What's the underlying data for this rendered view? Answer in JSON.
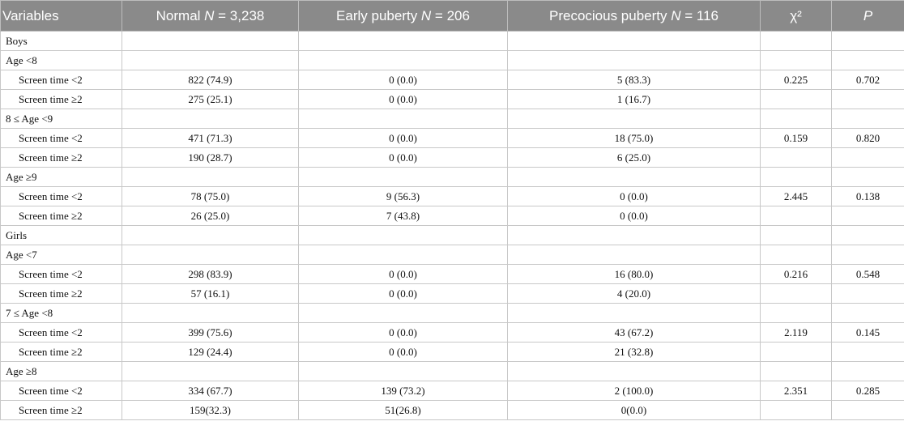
{
  "table": {
    "headers": [
      {
        "pre": "Variables",
        "n": "",
        "num": ""
      },
      {
        "pre": "Normal ",
        "n": "N",
        "num": " = 3,238"
      },
      {
        "pre": "Early puberty ",
        "n": "N",
        "num": " = 206"
      },
      {
        "pre": "Precocious puberty ",
        "n": "N",
        "num": " = 116"
      },
      {
        "pre": "χ²",
        "n": "",
        "num": ""
      },
      {
        "pre": "",
        "n": "P",
        "num": ""
      }
    ],
    "rows": [
      {
        "type": "group",
        "label": "Boys"
      },
      {
        "type": "group",
        "label": "Age <8"
      },
      {
        "type": "data",
        "label": "Screen time <2",
        "normal": "822 (74.9)",
        "early": "0 (0.0)",
        "precocious": "5 (83.3)",
        "chi2": "0.225",
        "p": "0.702"
      },
      {
        "type": "data",
        "label": "Screen time ≥2",
        "normal": "275 (25.1)",
        "early": "0 (0.0)",
        "precocious": "1 (16.7)",
        "chi2": "",
        "p": ""
      },
      {
        "type": "group",
        "label": "8 ≤ Age <9"
      },
      {
        "type": "data",
        "label": "Screen time <2",
        "normal": "471 (71.3)",
        "early": "0 (0.0)",
        "precocious": "18 (75.0)",
        "chi2": "0.159",
        "p": "0.820"
      },
      {
        "type": "data",
        "label": "Screen time ≥2",
        "normal": "190 (28.7)",
        "early": "0 (0.0)",
        "precocious": "6 (25.0)",
        "chi2": "",
        "p": ""
      },
      {
        "type": "group",
        "label": "Age ≥9"
      },
      {
        "type": "data",
        "label": "Screen time <2",
        "normal": "78 (75.0)",
        "early": "9 (56.3)",
        "precocious": "0 (0.0)",
        "chi2": "2.445",
        "p": "0.138"
      },
      {
        "type": "data",
        "label": "Screen time ≥2",
        "normal": "26 (25.0)",
        "early": "7 (43.8)",
        "precocious": "0 (0.0)",
        "chi2": "",
        "p": ""
      },
      {
        "type": "group",
        "label": "Girls"
      },
      {
        "type": "group",
        "label": "Age <7"
      },
      {
        "type": "data",
        "label": "Screen time <2",
        "normal": "298 (83.9)",
        "early": "0 (0.0)",
        "precocious": "16 (80.0)",
        "chi2": "0.216",
        "p": "0.548"
      },
      {
        "type": "data",
        "label": "Screen time ≥2",
        "normal": "57 (16.1)",
        "early": "0 (0.0)",
        "precocious": "4 (20.0)",
        "chi2": "",
        "p": ""
      },
      {
        "type": "group",
        "label": "7 ≤ Age <8"
      },
      {
        "type": "data",
        "label": "Screen time <2",
        "normal": "399 (75.6)",
        "early": "0 (0.0)",
        "precocious": "43 (67.2)",
        "chi2": "2.119",
        "p": "0.145"
      },
      {
        "type": "data",
        "label": "Screen time ≥2",
        "normal": "129 (24.4)",
        "early": "0 (0.0)",
        "precocious": "21 (32.8)",
        "chi2": "",
        "p": ""
      },
      {
        "type": "group",
        "label": "Age ≥8"
      },
      {
        "type": "data",
        "label": "Screen time <2",
        "normal": "334 (67.7)",
        "early": "139 (73.2)",
        "precocious": "2 (100.0)",
        "chi2": "2.351",
        "p": "0.285"
      },
      {
        "type": "data",
        "label": "Screen time ≥2",
        "normal": "159(32.3)",
        "early": "51(26.8)",
        "precocious": "0(0.0)",
        "chi2": "",
        "p": ""
      }
    ]
  }
}
